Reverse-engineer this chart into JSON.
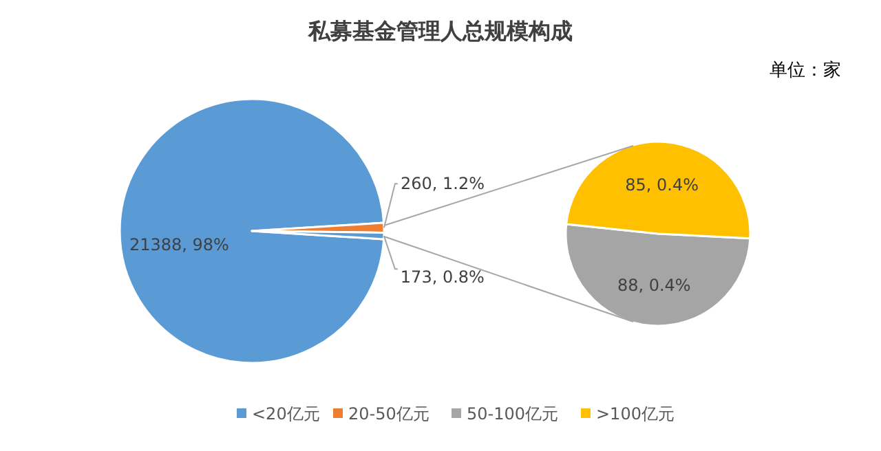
{
  "chart_data": [
    {
      "type": "pie",
      "title": "私募基金管理人总规模构成",
      "annotations": [
        "单位：家"
      ],
      "categories": [
        "<20亿元",
        "20-50亿元",
        null
      ],
      "values": [
        21388,
        260,
        173
      ],
      "colors": [
        "#5b9bd5",
        "#ed7d31",
        "#5b9bd5"
      ],
      "value_labels": [
        "21388, 98%",
        "260, 1.2%",
        "173, 0.8%"
      ],
      "legend": "bottom"
    },
    {
      "type": "pie",
      "categories": [
        "50-100亿元",
        ">100亿元"
      ],
      "values": [
        88,
        85
      ],
      "colors": [
        "#a5a5a5",
        "#ffc000"
      ],
      "value_labels": [
        "88, 0.4%",
        "85, 0.4%"
      ],
      "legend": "bottom"
    }
  ]
}
